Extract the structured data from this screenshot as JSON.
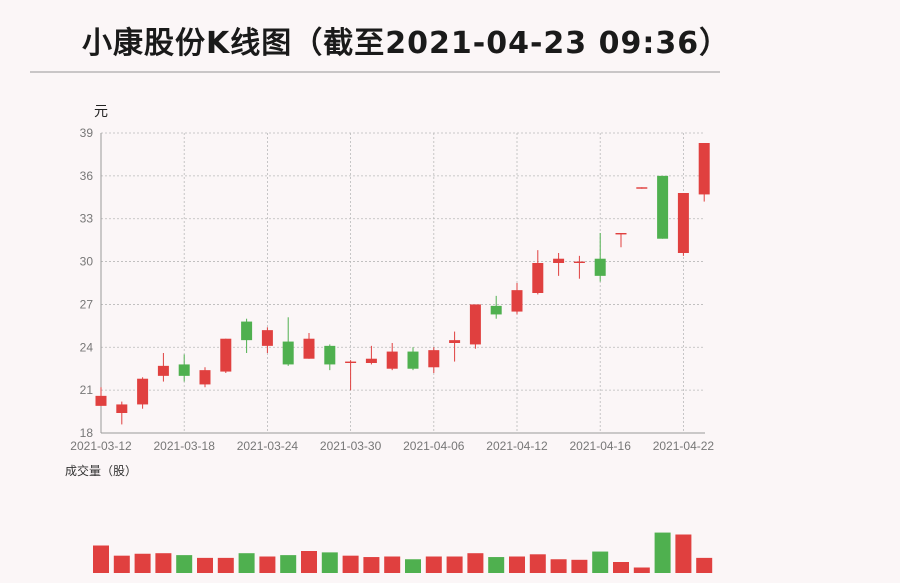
{
  "title": "小康股份K线图（截至2021-04-23 09:36）",
  "colors": {
    "up": "#e0403f",
    "down": "#4fb04f",
    "grid": "#b9b9b9",
    "axis": "#999999"
  },
  "chart_data": {
    "type": "candlestick",
    "title": "小康股份K线图（截至2021-04-23 09:36）",
    "ylabel": "元",
    "volume_label": "成交量（股）",
    "ylim": [
      18,
      39
    ],
    "yticks": [
      "18",
      "21",
      "24",
      "27",
      "30",
      "33",
      "36",
      "39"
    ],
    "xtick_labels": [
      "2021-03-12",
      "2021-03-18",
      "2021-03-24",
      "2021-03-30",
      "2021-04-06",
      "2021-04-12",
      "2021-04-16",
      "2021-04-22"
    ],
    "grid": true,
    "candles": [
      {
        "o": 19.9,
        "c": 20.6,
        "h": 21.2,
        "l": 19.9
      },
      {
        "o": 19.4,
        "c": 20.0,
        "h": 20.2,
        "l": 18.6
      },
      {
        "o": 20.0,
        "c": 21.8,
        "h": 21.9,
        "l": 19.7
      },
      {
        "o": 22.0,
        "c": 22.7,
        "h": 23.6,
        "l": 21.6
      },
      {
        "o": 22.8,
        "c": 22.0,
        "h": 23.5,
        "l": 21.6
      },
      {
        "o": 21.4,
        "c": 22.4,
        "h": 22.6,
        "l": 21.2
      },
      {
        "o": 22.3,
        "c": 24.6,
        "h": 24.6,
        "l": 22.2
      },
      {
        "o": 25.8,
        "c": 24.5,
        "h": 26.0,
        "l": 23.6
      },
      {
        "o": 24.1,
        "c": 25.2,
        "h": 25.4,
        "l": 23.6
      },
      {
        "o": 24.4,
        "c": 22.8,
        "h": 26.1,
        "l": 22.7
      },
      {
        "o": 23.2,
        "c": 24.6,
        "h": 25.0,
        "l": 23.2
      },
      {
        "o": 24.1,
        "c": 22.8,
        "h": 24.2,
        "l": 22.4
      },
      {
        "o": 22.9,
        "c": 23.0,
        "h": 23.1,
        "l": 21.0
      },
      {
        "o": 22.9,
        "c": 23.2,
        "h": 24.1,
        "l": 22.8
      },
      {
        "o": 22.5,
        "c": 23.7,
        "h": 24.3,
        "l": 22.4
      },
      {
        "o": 23.7,
        "c": 22.5,
        "h": 24.0,
        "l": 22.4
      },
      {
        "o": 22.6,
        "c": 23.8,
        "h": 24.0,
        "l": 22.2
      },
      {
        "o": 24.3,
        "c": 24.5,
        "h": 25.1,
        "l": 23.0
      },
      {
        "o": 24.2,
        "c": 27.0,
        "h": 27.0,
        "l": 23.9
      },
      {
        "o": 26.9,
        "c": 26.3,
        "h": 27.6,
        "l": 26.0
      },
      {
        "o": 26.5,
        "c": 28.0,
        "h": 28.5,
        "l": 26.3
      },
      {
        "o": 27.8,
        "c": 29.9,
        "h": 30.8,
        "l": 27.7
      },
      {
        "o": 29.9,
        "c": 30.2,
        "h": 30.6,
        "l": 29.0
      },
      {
        "o": 29.9,
        "c": 30.0,
        "h": 30.4,
        "l": 28.8
      },
      {
        "o": 30.2,
        "c": 29.0,
        "h": 32.0,
        "l": 28.6
      },
      {
        "o": 31.9,
        "c": 32.0,
        "h": 32.0,
        "l": 31.0
      },
      {
        "o": 35.1,
        "c": 35.2,
        "h": 35.2,
        "l": 35.1
      },
      {
        "o": 36.0,
        "c": 31.6,
        "h": 36.0,
        "l": 31.6
      },
      {
        "o": 30.6,
        "c": 34.8,
        "h": 34.8,
        "l": 30.4
      },
      {
        "o": 34.7,
        "c": 38.3,
        "h": 38.3,
        "l": 34.2
      }
    ],
    "volume": [
      1.0,
      0.63,
      0.7,
      0.72,
      0.65,
      0.55,
      0.55,
      0.72,
      0.6,
      0.65,
      0.8,
      0.75,
      0.63,
      0.58,
      0.6,
      0.5,
      0.6,
      0.6,
      0.72,
      0.58,
      0.6,
      0.68,
      0.5,
      0.48,
      0.78,
      0.4,
      0.2,
      1.47,
      1.4,
      0.55
    ]
  }
}
